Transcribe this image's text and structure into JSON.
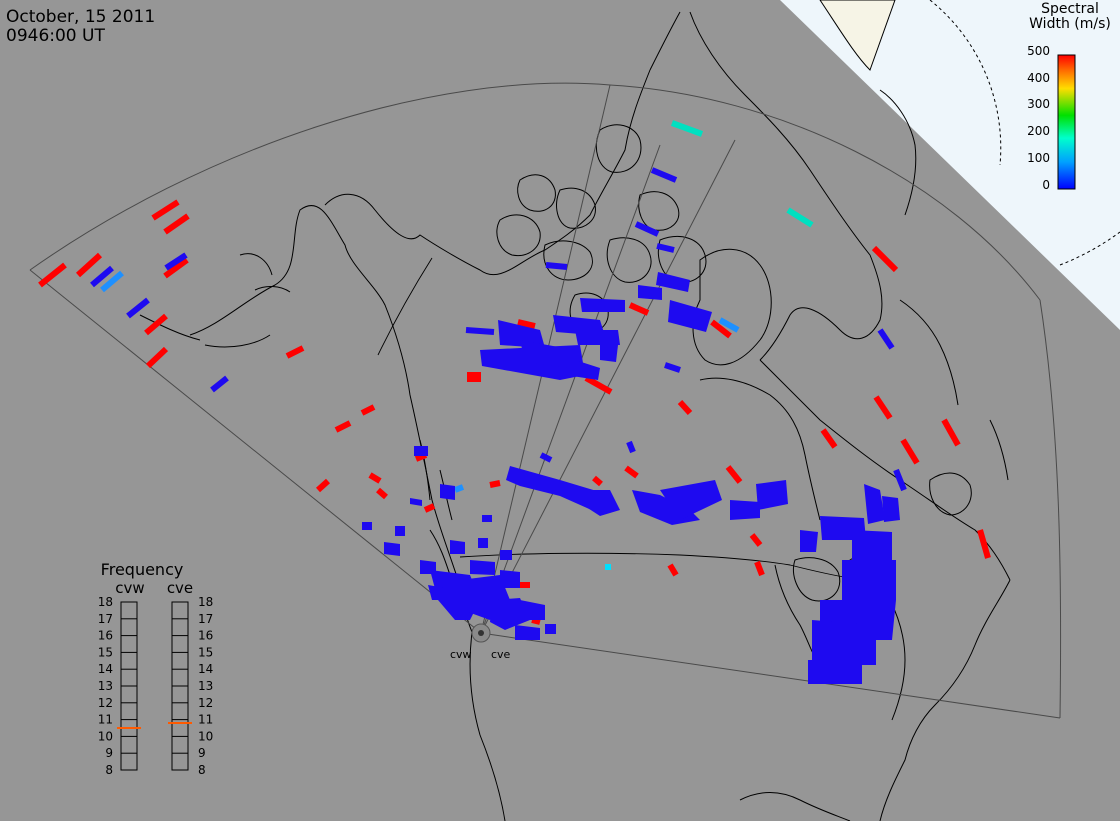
{
  "header": {
    "date": "October, 15 2011",
    "time": "0946:00 UT"
  },
  "legend": {
    "title_line1": "Spectral",
    "title_line2": "Width (m/s)",
    "ticks": [
      "500",
      "400",
      "300",
      "200",
      "100",
      "0"
    ],
    "colors": [
      "#ff0000",
      "#ffff00",
      "#00ff00",
      "#00ffff",
      "#0000ff"
    ]
  },
  "frequency": {
    "title": "Frequency",
    "radars": [
      {
        "label": "cvw",
        "current": 10.5
      },
      {
        "label": "cve",
        "current": 10.8
      }
    ],
    "scale": [
      "18",
      "17",
      "16",
      "15",
      "14",
      "13",
      "12",
      "11",
      "10",
      "9",
      "8"
    ]
  },
  "radars": {
    "site_labels": [
      "cvw",
      "cve"
    ]
  },
  "colors": {
    "background": "#969696",
    "ocean_ice": "#eef6fb",
    "land_ice": "#f6f4e6",
    "marker_orange": "#ff5a00"
  }
}
